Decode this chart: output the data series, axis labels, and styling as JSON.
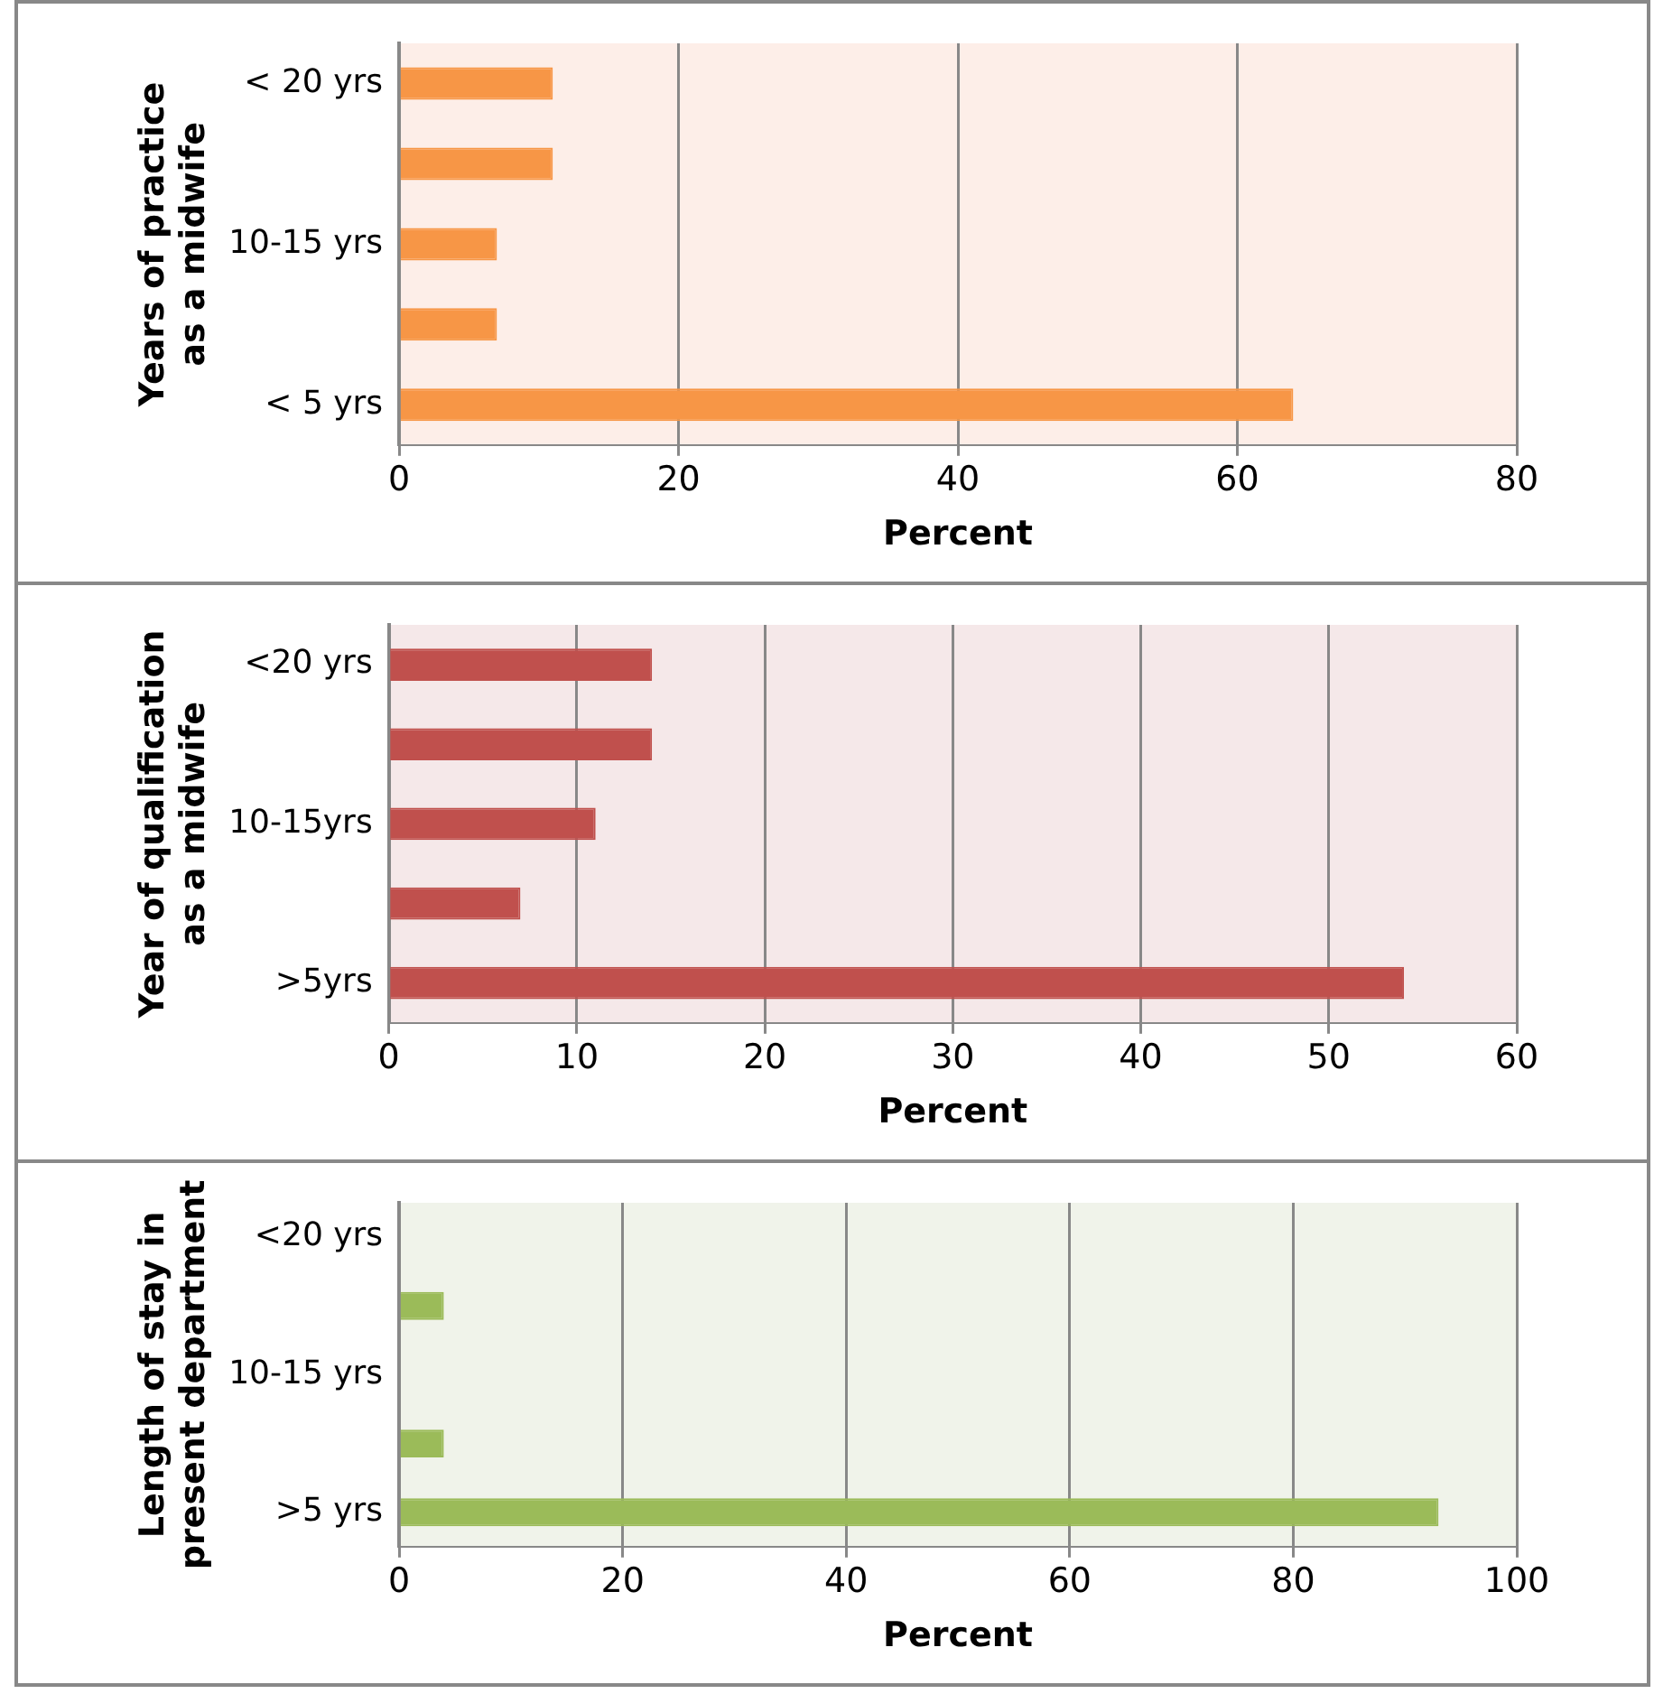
{
  "chart_data": [
    {
      "type": "bar",
      "orientation": "horizontal",
      "ylabel": "Years of practice as a midwife",
      "xlabel": "Percent",
      "categories": [
        "< 20 yrs",
        null,
        "10-15 yrs",
        null,
        "< 5 yrs"
      ],
      "values": [
        11,
        11,
        7,
        7,
        64
      ],
      "color": "#f79646",
      "xlim": [
        0,
        80
      ],
      "xticks": [
        0,
        20,
        40,
        60,
        80
      ],
      "grid": "x",
      "legend": false
    },
    {
      "type": "bar",
      "orientation": "horizontal",
      "ylabel": "Year of qualification as a midwife",
      "xlabel": "Percent",
      "categories": [
        "<20 yrs",
        null,
        "10-15yrs",
        null,
        ">5yrs"
      ],
      "values": [
        14,
        14,
        11,
        7,
        54
      ],
      "color": "#c0504d",
      "xlim": [
        0,
        60
      ],
      "xticks": [
        0,
        10,
        20,
        30,
        40,
        50,
        60
      ],
      "grid": "x",
      "legend": false
    },
    {
      "type": "bar",
      "orientation": "horizontal",
      "ylabel": "Length of stay in present department",
      "xlabel": "Percent",
      "categories": [
        "<20 yrs",
        null,
        "10-15 yrs",
        null,
        ">5 yrs"
      ],
      "values": [
        0,
        4,
        0,
        4,
        93
      ],
      "color": "#9bbb59",
      "xlim": [
        0,
        100
      ],
      "xticks": [
        0,
        20,
        40,
        60,
        80,
        100
      ],
      "grid": "x",
      "legend": false
    }
  ]
}
